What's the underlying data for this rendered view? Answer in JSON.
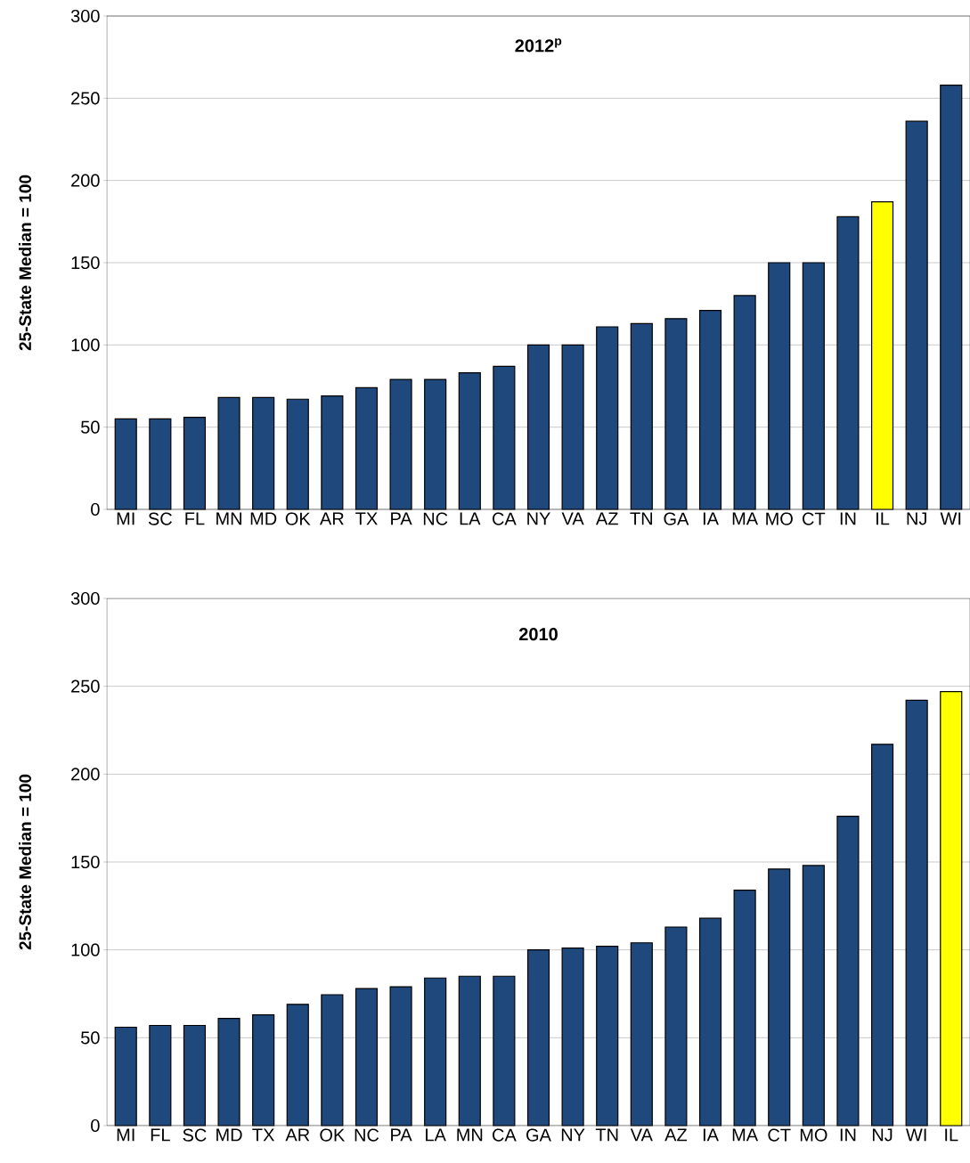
{
  "chart_data": [
    {
      "type": "bar",
      "title": "2012$^{p}$",
      "ylabel": "25-State Median = 100",
      "categories": [
        "MI",
        "SC",
        "FL",
        "MN",
        "MD",
        "OK",
        "AR",
        "TX",
        "PA",
        "NC",
        "LA",
        "CA",
        "NY",
        "VA",
        "AZ",
        "TN",
        "GA",
        "IA",
        "MA",
        "MO",
        "CT",
        "IN",
        "IL",
        "NJ",
        "WI"
      ],
      "values": [
        55,
        55,
        56,
        68,
        68,
        67,
        69,
        74,
        79,
        79,
        83,
        87,
        100,
        100,
        111,
        113,
        116,
        121,
        130,
        150,
        150,
        178,
        187,
        236,
        258
      ],
      "colors": [
        "#1f497d",
        "#1f497d",
        "#1f497d",
        "#1f497d",
        "#1f497d",
        "#1f497d",
        "#1f497d",
        "#1f497d",
        "#1f497d",
        "#1f497d",
        "#1f497d",
        "#1f497d",
        "#1f497d",
        "#1f497d",
        "#1f497d",
        "#1f497d",
        "#1f497d",
        "#1f497d",
        "#1f497d",
        "#1f497d",
        "#1f497d",
        "#1f497d",
        "#ffff00",
        "#1f497d",
        "#1f497d"
      ],
      "ylim": [
        0,
        300
      ],
      "yticks": [
        0,
        50,
        100,
        150,
        200,
        250,
        300
      ],
      "grid": "y"
    },
    {
      "type": "bar",
      "title": "2010",
      "ylabel": "25-State Median = 100",
      "categories": [
        "MI",
        "FL",
        "SC",
        "MD",
        "TX",
        "AR",
        "OK",
        "NC",
        "PA",
        "LA",
        "MN",
        "CA",
        "GA",
        "NY",
        "TN",
        "VA",
        "AZ",
        "IA",
        "MA",
        "CT",
        "MO",
        "IN",
        "NJ",
        "WI",
        "IL"
      ],
      "values": [
        56,
        57,
        57,
        61,
        63,
        69,
        74.5,
        78,
        79,
        84,
        85,
        85,
        100,
        101,
        102,
        104,
        113,
        118,
        134,
        146,
        148,
        176,
        217,
        242,
        247
      ],
      "colors": [
        "#1f497d",
        "#1f497d",
        "#1f497d",
        "#1f497d",
        "#1f497d",
        "#1f497d",
        "#1f497d",
        "#1f497d",
        "#1f497d",
        "#1f497d",
        "#1f497d",
        "#1f497d",
        "#1f497d",
        "#1f497d",
        "#1f497d",
        "#1f497d",
        "#1f497d",
        "#1f497d",
        "#1f497d",
        "#1f497d",
        "#1f497d",
        "#1f497d",
        "#1f497d",
        "#1f497d",
        "#ffff00"
      ],
      "ylim": [
        0,
        300
      ],
      "yticks": [
        0,
        50,
        100,
        150,
        200,
        250,
        300
      ],
      "grid": "y"
    }
  ]
}
